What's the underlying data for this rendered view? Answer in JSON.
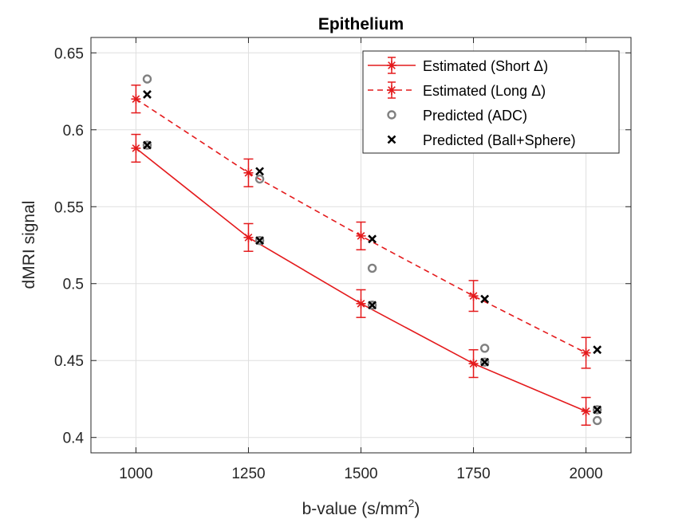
{
  "chart_data": {
    "type": "line",
    "title": "Epithelium",
    "xlabel": "b-value (s/mm",
    "xlabel_sup": "2",
    "xlabel_suffix": ")",
    "ylabel": "dMRI signal",
    "xlim": [
      900,
      2100
    ],
    "ylim": [
      0.39,
      0.66
    ],
    "xticks": [
      1000,
      1250,
      1500,
      1750,
      2000
    ],
    "yticks": [
      0.4,
      0.45,
      0.5,
      0.55,
      0.6,
      0.65
    ],
    "ytick_labels": [
      "0.4",
      "0.45",
      "0.5",
      "0.55",
      "0.6",
      "0.65"
    ],
    "grid": true,
    "legend_position": "top-right",
    "series": [
      {
        "name": "Estimated (Short Δ)",
        "style": "solid-line-asterisk-errorbar",
        "color": "#e41a1c",
        "x": [
          1000,
          1250,
          1500,
          1750,
          2000
        ],
        "y": [
          0.588,
          0.53,
          0.487,
          0.448,
          0.417
        ],
        "err": [
          0.009,
          0.009,
          0.009,
          0.009,
          0.009
        ]
      },
      {
        "name": "Estimated (Long Δ)",
        "style": "dashed-line-asterisk-errorbar",
        "color": "#e41a1c",
        "x": [
          1000,
          1250,
          1500,
          1750,
          2000
        ],
        "y": [
          0.62,
          0.572,
          0.531,
          0.492,
          0.455
        ],
        "err": [
          0.009,
          0.009,
          0.009,
          0.01,
          0.01
        ]
      },
      {
        "name": "Predicted (ADC)",
        "style": "circle-marker",
        "color": "#808080",
        "x": [
          1025,
          1025,
          1275,
          1275,
          1525,
          1525,
          1775,
          1775,
          2025,
          2025
        ],
        "y": [
          0.633,
          0.59,
          0.568,
          0.528,
          0.51,
          0.486,
          0.458,
          0.449,
          0.411,
          0.418
        ]
      },
      {
        "name": "Predicted (Ball+Sphere)",
        "style": "x-marker",
        "color": "#000000",
        "x": [
          1025,
          1025,
          1275,
          1275,
          1525,
          1525,
          1775,
          1775,
          2025,
          2025
        ],
        "y": [
          0.623,
          0.59,
          0.573,
          0.528,
          0.529,
          0.486,
          0.49,
          0.449,
          0.457,
          0.418
        ]
      }
    ]
  }
}
